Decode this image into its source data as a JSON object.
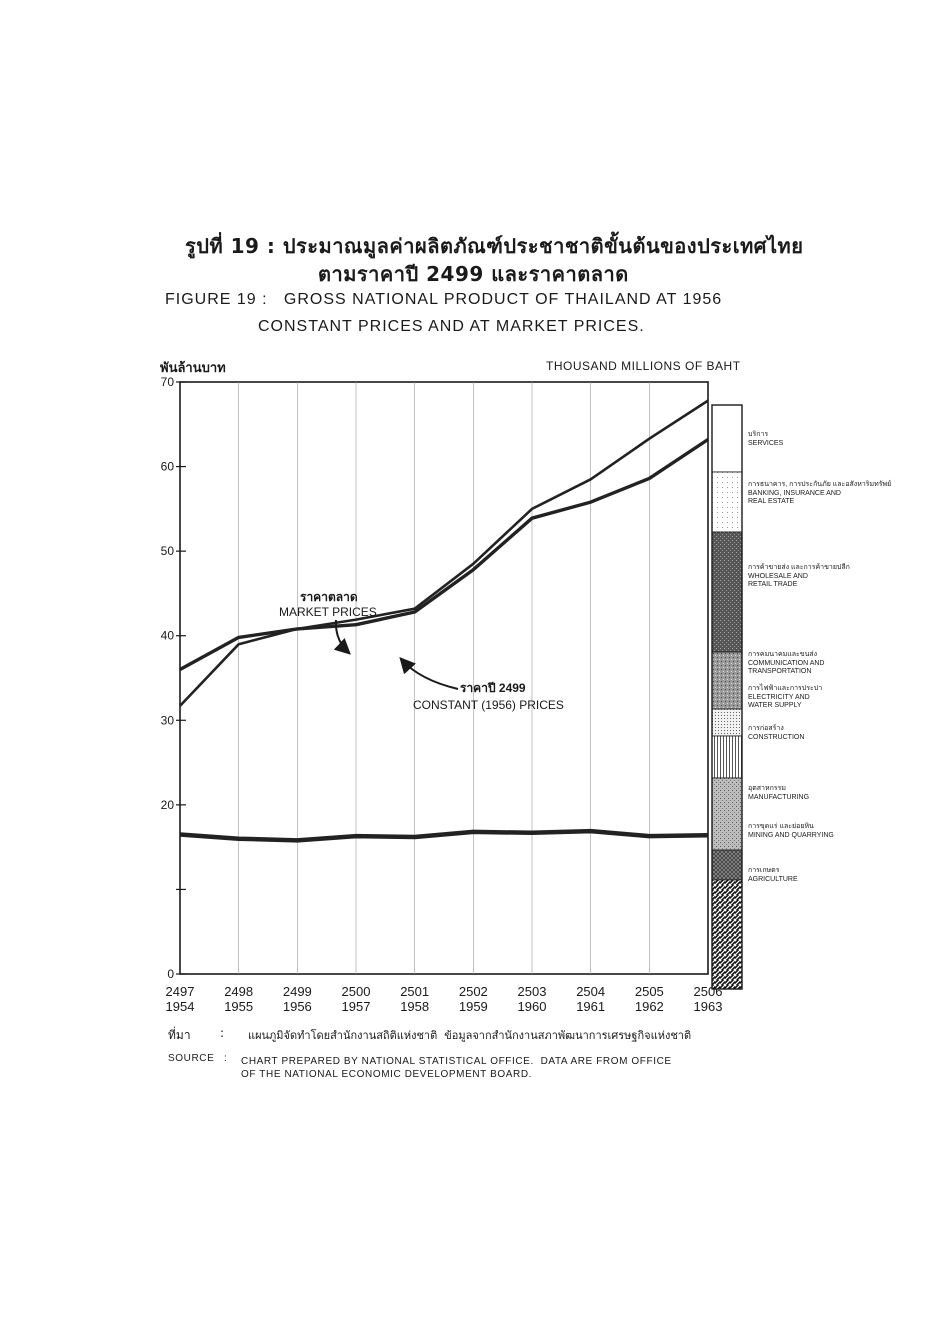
{
  "header": {
    "thai_title_line1": "รูปที่ 19 :  ประมาณมูลค่าผลิตภัณฑ์ประชาชาติขั้นต้นของประเทศไทย",
    "thai_title_line2": "ตามราคาปี 2499 และราคาตลาด",
    "en_title_line1": "FIGURE 19 :   GROSS NATIONAL PRODUCT OF THAILAND AT 1956",
    "en_title_line2": "CONSTANT PRICES AND AT MARKET PRICES."
  },
  "unit_thai": "พันล้านบาท",
  "unit_en": "THOUSAND MILLIONS OF BAHT",
  "chart_data": {
    "type": "line",
    "title": "GROSS NATIONAL PRODUCT OF THAILAND AT 1956 CONSTANT PRICES AND AT MARKET PRICES.",
    "ylabel": "THOUSAND MILLIONS OF BAHT",
    "ylim": [
      0,
      70
    ],
    "yticks": [
      0,
      10,
      20,
      30,
      40,
      50,
      60,
      70
    ],
    "ytick_labels": [
      "0",
      "",
      "20",
      "30",
      "40",
      "50",
      "60",
      "70"
    ],
    "x_thai": [
      "2497",
      "2498",
      "2499",
      "2500",
      "2501",
      "2502",
      "2503",
      "2504",
      "2505",
      "2506"
    ],
    "x_ad": [
      "1954",
      "1955",
      "1956",
      "1957",
      "1958",
      "1959",
      "1960",
      "1961",
      "1962",
      "1963"
    ],
    "grid": "vertical",
    "series": [
      {
        "name": "MARKET PRICES",
        "name_thai": "ราคาตลาด",
        "values": [
          31.7,
          39.0,
          40.8,
          41.9,
          43.2,
          48.5,
          55.0,
          58.5,
          63.3,
          67.8
        ]
      },
      {
        "name": "CONSTANT (1956) PRICES",
        "name_thai": "ราคาปี 2499",
        "values": [
          36.0,
          39.8,
          40.8,
          41.3,
          42.8,
          47.8,
          53.9,
          55.8,
          58.6,
          63.2
        ]
      },
      {
        "name": "AGRICULTURE",
        "values": [
          16.5,
          16.0,
          15.8,
          16.3,
          16.2,
          16.8,
          16.7,
          16.9,
          16.3,
          16.4
        ]
      }
    ],
    "annotations": [
      {
        "thai": "ราคาตลาด",
        "en": "MARKET PRICES"
      },
      {
        "thai": "ราคาปี 2499",
        "en": "CONSTANT (1956) PRICES"
      }
    ],
    "sector_legend": [
      {
        "thai": "บริการ",
        "en": [
          "SERVICES"
        ],
        "pattern": "blank"
      },
      {
        "thai": "การธนาคาร, การประกันภัย และอสังหาริมทรัพย์",
        "en": [
          "BANKING, INSURANCE AND",
          "REAL ESTATE"
        ],
        "pattern": "dots-light"
      },
      {
        "thai": "การค้าขายส่ง และการค้าขายปลีก",
        "en": [
          "WHOLESALE AND",
          "RETAIL TRADE"
        ],
        "pattern": "stipple-dark"
      },
      {
        "thai": "การคมนาคมและขนส่ง",
        "en": [
          "COMMUNICATION AND",
          "TRANSPORTATION"
        ],
        "pattern": "stipple-medium"
      },
      {
        "thai": "การไฟฟ้าและการประปา",
        "en": [
          "ELECTRICITY AND",
          "WATER SUPPLY"
        ],
        "pattern": "dots-fine"
      },
      {
        "thai": "การก่อสร้าง",
        "en": [
          "CONSTRUCTION"
        ],
        "pattern": "vertical-lines"
      },
      {
        "thai": "อุตสาหกรรม",
        "en": [
          "MANUFACTURING"
        ],
        "pattern": "stipple-gray"
      },
      {
        "thai": "การขุดแร่ และย่อยหิน",
        "en": [
          "MINING AND QUARRYING"
        ],
        "pattern": "crosshatch"
      },
      {
        "thai": "การเกษตร",
        "en": [
          "AGRICULTURE"
        ],
        "pattern": "diagonal"
      }
    ]
  },
  "source": {
    "thai_label": "ที่มา",
    "thai_text": "แผนภูมิจัดทำโดยสำนักงานสถิติแห่งชาติ  ข้อมูลจากสำนักงานสภาพัฒนาการเศรษฐกิจแห่งชาติ",
    "en_label": "SOURCE",
    "en_line1": "CHART PREPARED BY NATIONAL STATISTICAL OFFICE.  DATA ARE FROM OFFICE",
    "en_line2": "OF THE NATIONAL ECONOMIC DEVELOPMENT BOARD."
  }
}
